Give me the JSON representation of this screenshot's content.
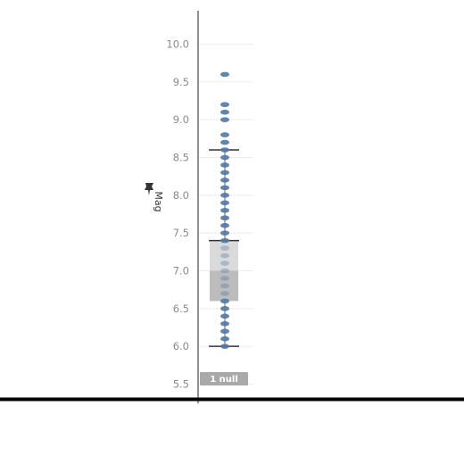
{
  "chart_data": {
    "type": "scatter",
    "subtype": "strip-plot-with-boxplot",
    "ylabel": "Mag",
    "ylabel_icon": "pin-icon",
    "ylim": [
      5.5,
      10.0
    ],
    "yticks": [
      "10.0",
      "9.5",
      "9.0",
      "8.5",
      "8.0",
      "7.5",
      "7.0",
      "6.5",
      "6.0",
      "5.5"
    ],
    "grid": true,
    "point_color": "#4e79a7",
    "box_color": "#999999",
    "null_badge": "1 null",
    "values": [
      6.0,
      6.1,
      6.2,
      6.3,
      6.4,
      6.5,
      6.6,
      6.7,
      6.8,
      6.9,
      7.0,
      7.1,
      7.2,
      7.3,
      7.4,
      7.5,
      7.6,
      7.7,
      7.8,
      7.9,
      8.0,
      8.1,
      8.2,
      8.3,
      8.4,
      8.5,
      8.6,
      8.7,
      8.8,
      9.0,
      9.1,
      9.2,
      9.6
    ],
    "box": {
      "lower_whisker": 6.0,
      "q1": 6.6,
      "median": 7.0,
      "q3": 7.4,
      "upper_whisker": 8.6
    }
  }
}
